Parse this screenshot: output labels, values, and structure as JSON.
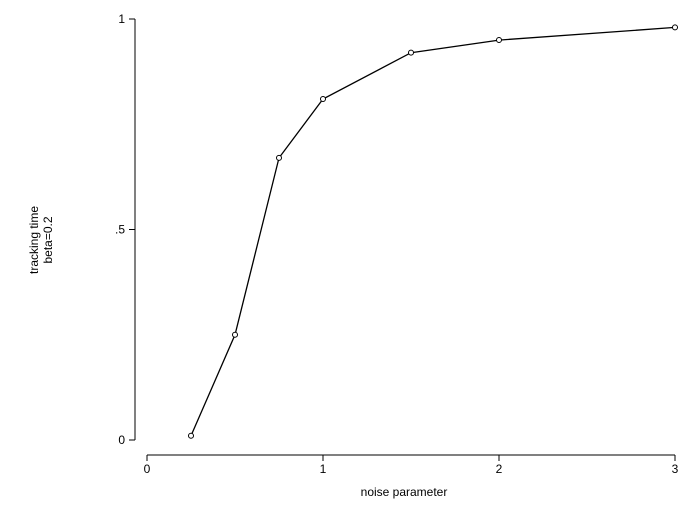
{
  "chart_data": {
    "type": "line",
    "title": "",
    "xlabel": "noise parameter",
    "ylabel_lines": [
      "tracking time",
      "beta=0.2"
    ],
    "xlim": [
      0,
      3
    ],
    "ylim": [
      0,
      1
    ],
    "xticks": [
      0,
      1,
      2,
      3
    ],
    "xtick_labels": [
      "0",
      "1",
      "2",
      "3"
    ],
    "yticks": [
      0,
      0.5,
      1
    ],
    "ytick_labels": [
      "0",
      ".5",
      "1"
    ],
    "grid": false,
    "legend": "none",
    "line_color": "#000000",
    "marker": "hollow-circle",
    "series": [
      {
        "x": [
          0.25,
          0.5,
          0.75,
          1.0,
          1.5,
          2.0,
          3.0
        ],
        "y": [
          0.01,
          0.25,
          0.67,
          0.81,
          0.92,
          0.95,
          0.98
        ]
      }
    ]
  }
}
